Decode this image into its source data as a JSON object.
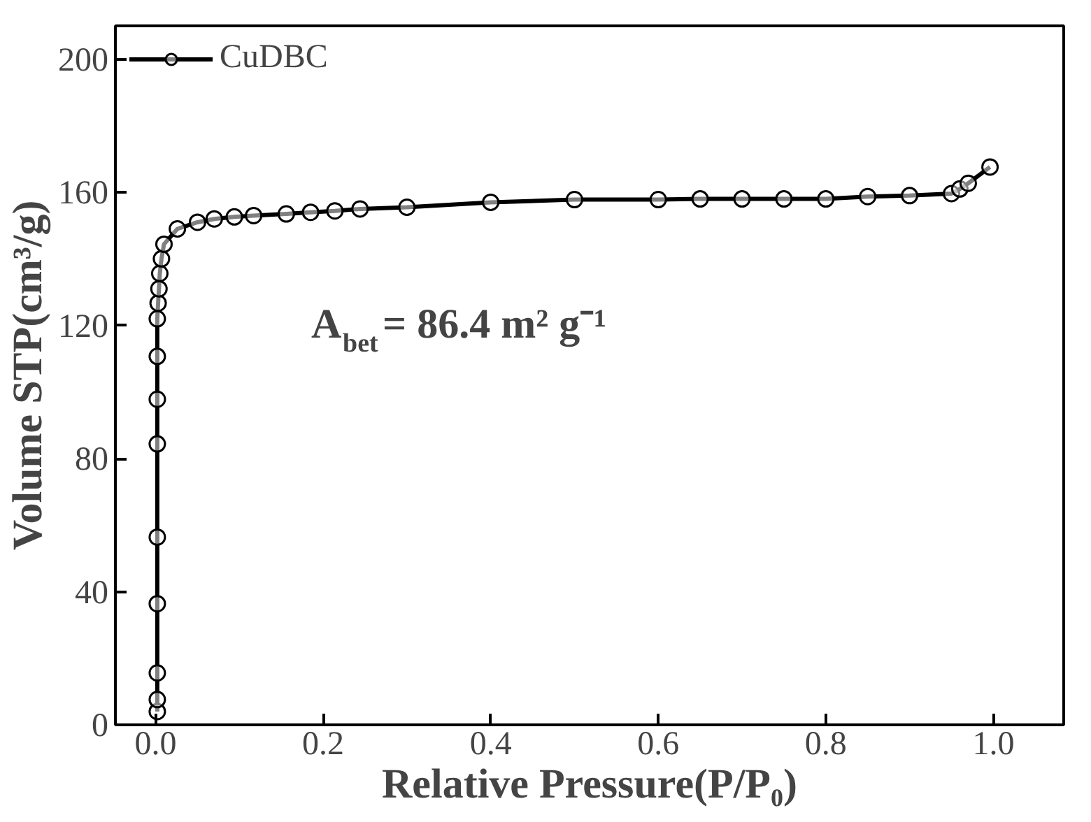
{
  "chart_data": {
    "type": "line",
    "xlabel": "Relative Pressure(P/P₀)",
    "ylabel": "Volume STP(cm³/g)",
    "xlim": [
      -0.048,
      1.084
    ],
    "ylim": [
      0,
      210
    ],
    "xticks": [
      {
        "value": 0,
        "label": "0.0"
      },
      {
        "value": 0.2,
        "label": "0.2"
      },
      {
        "value": 0.4,
        "label": "0.4"
      },
      {
        "value": 0.6,
        "label": "0.6"
      },
      {
        "value": 0.8,
        "label": "0.8"
      },
      {
        "value": 1.0,
        "label": "1.0"
      }
    ],
    "yticks": [
      0,
      40,
      80,
      120,
      160,
      200
    ],
    "grid": false,
    "legend": "top left",
    "marker": "circle",
    "line_style": "solid",
    "annotations": [
      "A$_{bet}$= 86.4 m² g⁻¹"
    ],
    "series": [
      {
        "name": "CuDBC",
        "color": "#000000",
        "x": [
          0.002,
          0.002,
          0.002,
          0.002,
          0.002,
          0.002,
          0.002,
          0.002,
          0.002,
          0.003,
          0.004,
          0.005,
          0.007,
          0.01,
          0.026,
          0.05,
          0.07,
          0.094,
          0.117,
          0.156,
          0.185,
          0.214,
          0.244,
          0.3,
          0.4,
          0.5,
          0.6,
          0.65,
          0.7,
          0.75,
          0.8,
          0.85,
          0.9,
          0.95,
          0.96,
          0.97,
          0.996
        ],
        "values": [
          4,
          7.6,
          15.6,
          36.4,
          56.4,
          84.4,
          97.8,
          110.7,
          122,
          126.7,
          131,
          135.6,
          140,
          144.4,
          149,
          151,
          152,
          152.6,
          153,
          153.5,
          154,
          154.4,
          155,
          155.5,
          157,
          157.8,
          157.8,
          158,
          158,
          158,
          158,
          158.7,
          159,
          159.6,
          161,
          162.7,
          167.6
        ]
      }
    ]
  }
}
